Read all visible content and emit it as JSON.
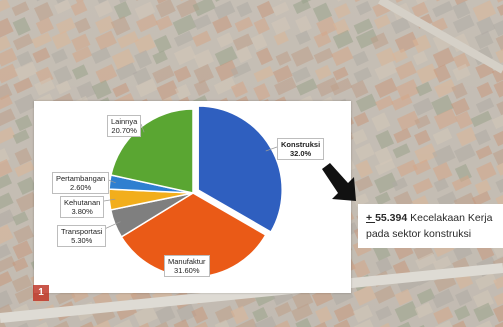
{
  "chart_data": {
    "type": "pie",
    "title": "",
    "series": [
      {
        "label": "Konstruksi",
        "value_text": "32.0%",
        "value": 32.0,
        "color": "#2f5fbf",
        "emphasis": true
      },
      {
        "label": "Manufaktur",
        "value_text": "31.60%",
        "value": 31.6,
        "color": "#ea5a17"
      },
      {
        "label": "Transportasi",
        "value_text": "5.30%",
        "value": 5.3,
        "color": "#7f7f7f"
      },
      {
        "label": "Kehutanan",
        "value_text": "3.80%",
        "value": 3.8,
        "color": "#f2ae1c"
      },
      {
        "label": "Pertambangan",
        "value_text": "2.60%",
        "value": 2.6,
        "color": "#2f7fd0"
      },
      {
        "label": "Lainnya",
        "value_text": "20.70%",
        "value": 20.7,
        "color": "#5aa632"
      }
    ],
    "start_angle_deg": 0,
    "direction": "clockwise",
    "legend": "none (leader-line callouts)"
  },
  "annotation": {
    "prefix": "+ ",
    "number": "55.394",
    "line1_rest": " Kecelakaan Kerja",
    "line2": "pada sektor konstruksi",
    "arrow_icon": "arrow-down-right-icon"
  },
  "page_badge": "1"
}
